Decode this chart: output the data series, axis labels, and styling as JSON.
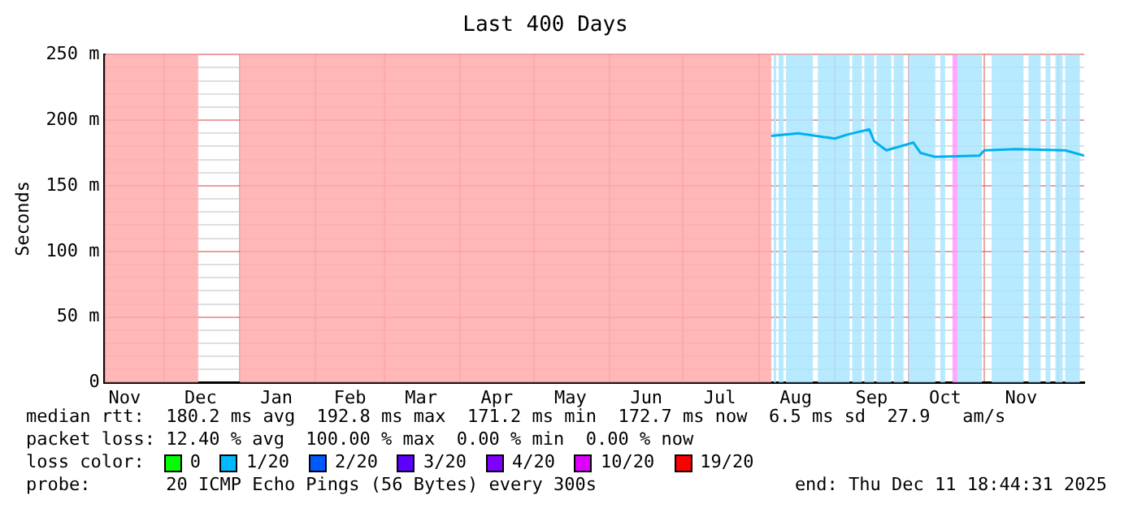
{
  "chart_data": {
    "type": "line",
    "title": "Last 400 Days",
    "ylabel": "Seconds",
    "x": [
      "2025-08-06",
      "2025-08-17",
      "2025-09-01",
      "2025-09-06",
      "2025-09-15",
      "2025-09-17",
      "2025-09-22",
      "2025-10-03",
      "2025-10-06",
      "2025-10-12",
      "2025-10-30",
      "2025-11-01",
      "2025-11-14",
      "2025-12-04",
      "2025-12-11T18:44"
    ],
    "series": [
      {
        "color": "#00b0f0",
        "values": [
          188,
          190,
          186,
          189,
          193,
          184,
          177,
          183,
          175,
          172,
          173,
          177,
          178,
          177,
          173
        ]
      },
      {
        "name": "0",
        "color": "#00ff00",
        "values": [
          null,
          null,
          null,
          null,
          null,
          null,
          null,
          null,
          null,
          null,
          null,
          null,
          null,
          null,
          null
        ]
      },
      {
        "name": "1/20",
        "color": "#00b8ff",
        "values": [
          null,
          null,
          null,
          null,
          null,
          null,
          null,
          null,
          null,
          null,
          null,
          null,
          null,
          null,
          null
        ]
      },
      {
        "name": "2/20",
        "color": "#0059ff",
        "values": [
          null,
          null,
          null,
          null,
          null,
          null,
          null,
          null,
          null,
          null,
          null,
          null,
          null,
          null,
          null
        ]
      },
      {
        "name": "3/20",
        "color": "#5e00ff",
        "values": [
          null,
          null,
          null,
          null,
          null,
          null,
          null,
          null,
          null,
          null,
          null,
          null,
          null,
          null,
          null
        ]
      },
      {
        "name": "4/20",
        "color": "#7e00ff",
        "values": [
          null,
          null,
          null,
          null,
          null,
          null,
          null,
          null,
          null,
          null,
          null,
          null,
          null,
          null,
          null
        ]
      },
      {
        "name": "10/20",
        "color": "#dd00ff",
        "values": [
          null,
          null,
          null,
          null,
          null,
          null,
          null,
          null,
          null,
          null,
          null,
          null,
          null,
          null,
          null
        ]
      },
      {
        "name": "19/20",
        "color": "#ff0000",
        "values": [
          null,
          null,
          null,
          null,
          null,
          null,
          null,
          null,
          null,
          null,
          null,
          null,
          null,
          null,
          null
        ]
      }
    ],
    "legend_title": "loss color:",
    "legend": "bottom",
    "grid": true,
    "xlim": [
      "2024-11-06T18:44",
      "2025-12-11T18:44"
    ],
    "xticks": [
      {
        "value": "2024-11-15",
        "label": "Nov"
      },
      {
        "value": "2024-12-01",
        "label": null
      },
      {
        "value": "2024-12-16",
        "label": "Dec"
      },
      {
        "value": "2025-01-01",
        "label": null
      },
      {
        "value": "2025-01-16",
        "label": "Jan"
      },
      {
        "value": "2025-02-01",
        "label": null
      },
      {
        "value": "2025-02-15",
        "label": "Feb"
      },
      {
        "value": "2025-03-01",
        "label": null
      },
      {
        "value": "2025-03-16",
        "label": "Mar"
      },
      {
        "value": "2025-04-01",
        "label": null
      },
      {
        "value": "2025-04-16",
        "label": "Apr"
      },
      {
        "value": "2025-05-01",
        "label": null
      },
      {
        "value": "2025-05-16",
        "label": "May"
      },
      {
        "value": "2025-06-01",
        "label": null
      },
      {
        "value": "2025-06-16",
        "label": "Jun"
      },
      {
        "value": "2025-07-01",
        "label": null
      },
      {
        "value": "2025-07-16",
        "label": "Jul"
      },
      {
        "value": "2025-08-01",
        "label": null
      },
      {
        "value": "2025-08-16",
        "label": "Aug"
      },
      {
        "value": "2025-09-01",
        "label": null
      },
      {
        "value": "2025-09-16",
        "label": "Sep"
      },
      {
        "value": "2025-10-01",
        "label": null
      },
      {
        "value": "2025-10-16",
        "label": "Oct"
      },
      {
        "value": "2025-11-01",
        "label": null
      },
      {
        "value": "2025-11-16",
        "label": "Nov"
      },
      {
        "value": "2025-12-01",
        "label": null
      }
    ],
    "ylim": [
      0,
      250
    ],
    "yticks": [
      0,
      {
        "value": 10,
        "label": null
      },
      {
        "value": 20,
        "label": null
      },
      {
        "value": 30,
        "label": null
      },
      {
        "value": 40,
        "label": null
      },
      {
        "value": 50,
        "label": "50 m"
      },
      {
        "value": 60,
        "label": null
      },
      {
        "value": 70,
        "label": null
      },
      {
        "value": 80,
        "label": null
      },
      {
        "value": 90,
        "label": null
      },
      {
        "value": 100,
        "label": "100 m"
      },
      {
        "value": 110,
        "label": null
      },
      {
        "value": 120,
        "label": null
      },
      {
        "value": 130,
        "label": null
      },
      {
        "value": 140,
        "label": null
      },
      {
        "value": 150,
        "label": "150 m"
      },
      {
        "value": 160,
        "label": null
      },
      {
        "value": 170,
        "label": null
      },
      {
        "value": 180,
        "label": null
      },
      {
        "value": 190,
        "label": null
      },
      {
        "value": 200,
        "label": "200 m"
      },
      {
        "value": 210,
        "label": null
      },
      {
        "value": 220,
        "label": null
      },
      {
        "value": 230,
        "label": null
      },
      {
        "value": 240,
        "label": null
      },
      {
        "value": 250,
        "label": "250 m"
      }
    ],
    "bands": [
      {
        "axis": "x",
        "from": "2024-11-06T18:44",
        "to": "2024-12-15",
        "color": "#ffaaaa"
      },
      {
        "axis": "x",
        "from": "2025-01-01",
        "to": "2025-08-06",
        "color": "#ffaaaa"
      },
      {
        "axis": "x",
        "from": "2025-08-07",
        "to": "2025-08-08",
        "color": "#aae6ff"
      },
      {
        "axis": "x",
        "from": "2025-08-09",
        "to": "2025-08-11",
        "color": "#aae6ff"
      },
      {
        "axis": "x",
        "from": "2025-08-12",
        "to": "2025-08-23",
        "color": "#aae6ff"
      },
      {
        "axis": "x",
        "from": "2025-08-25",
        "to": "2025-09-07",
        "color": "#aae6ff"
      },
      {
        "axis": "x",
        "from": "2025-09-08",
        "to": "2025-09-12",
        "color": "#aae6ff"
      },
      {
        "axis": "x",
        "from": "2025-09-13",
        "to": "2025-09-17",
        "color": "#aae6ff"
      },
      {
        "axis": "x",
        "from": "2025-09-18",
        "to": "2025-09-24",
        "color": "#aae6ff"
      },
      {
        "axis": "x",
        "from": "2025-09-25",
        "to": "2025-09-29",
        "color": "#aae6ff"
      },
      {
        "axis": "x",
        "from": "2025-10-01",
        "to": "2025-10-12",
        "color": "#aae6ff"
      },
      {
        "axis": "x",
        "from": "2025-10-14",
        "to": "2025-10-16",
        "color": "#aae6ff"
      },
      {
        "axis": "x",
        "from": "2025-10-19",
        "to": "2025-10-21",
        "color": "#ff99ff"
      },
      {
        "axis": "x",
        "from": "2025-10-21",
        "to": "2025-10-31",
        "color": "#aae6ff"
      },
      {
        "axis": "x",
        "from": "2025-11-04",
        "to": "2025-11-17",
        "color": "#aae6ff"
      },
      {
        "axis": "x",
        "from": "2025-11-19",
        "to": "2025-11-24",
        "color": "#aae6ff"
      },
      {
        "axis": "x",
        "from": "2025-11-26",
        "to": "2025-11-28",
        "color": "#aae6ff"
      },
      {
        "axis": "x",
        "from": "2025-11-30",
        "to": "2025-12-03",
        "color": "#aae6ff"
      },
      {
        "axis": "x",
        "from": "2025-12-04",
        "to": "2025-12-10",
        "color": "#aae6ff"
      }
    ],
    "annotations": [
      "median rtt:  180.2 ms avg  192.8 ms max  171.2 ms min  172.7 ms now  6.5 ms sd  27.9   am/s",
      "packet loss: 12.40 % avg  100.00 % max  0.00 % min  0.00 % now",
      "probe:       20 ICMP Echo Pings (56 Bytes) every 300s",
      "end: Thu Dec 11 18:44:31 2025"
    ]
  }
}
